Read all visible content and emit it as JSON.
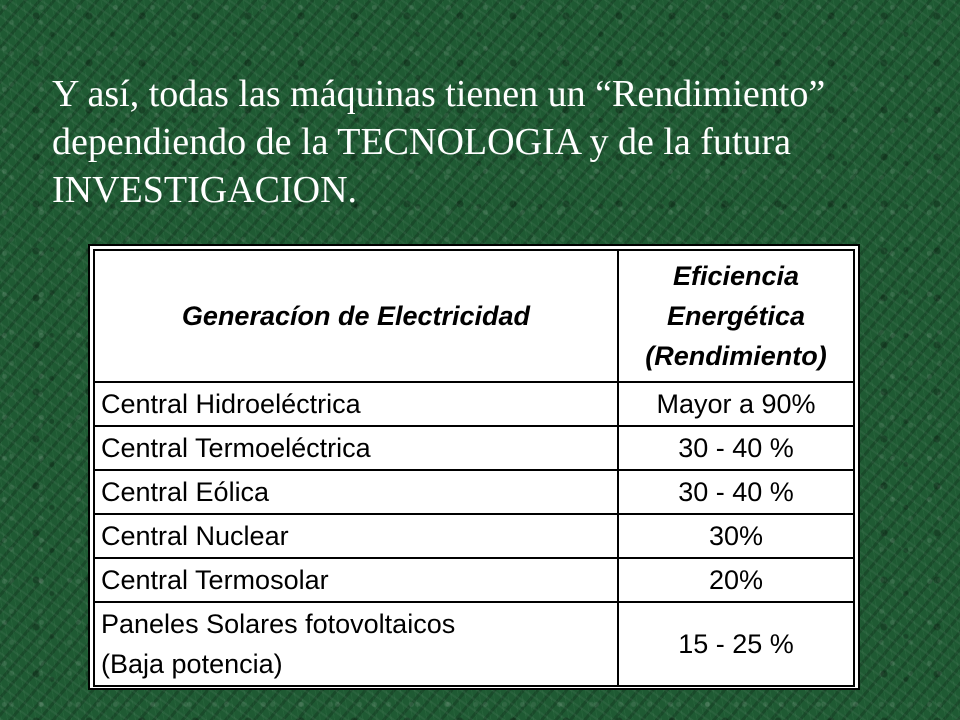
{
  "heading": {
    "line1": "Y así, todas las máquinas tienen un “Rendimiento”",
    "line2": "dependiendo de la TECNOLOGIA y de la futura",
    "line3": "INVESTIGACION."
  },
  "table": {
    "header": {
      "col1": "Generacíon de Electricidad",
      "col2_line1": "Eficiencia",
      "col2_line2": "Energética",
      "col2_line3": "(Rendimiento)"
    },
    "rows": [
      {
        "name": "Central Hidroeléctrica",
        "value": "Mayor a 90%"
      },
      {
        "name": "Central Termoeléctrica",
        "value": "30 - 40 %"
      },
      {
        "name": "Central Eólica",
        "value": "30 - 40 %"
      },
      {
        "name": "Central Nuclear",
        "value": "30%"
      },
      {
        "name": "Central Termosolar",
        "value": "20%"
      },
      {
        "name_line1": "Paneles Solares fotovoltaicos",
        "name_line2": "(Baja potencia)",
        "value": "15 - 25 %"
      }
    ]
  }
}
